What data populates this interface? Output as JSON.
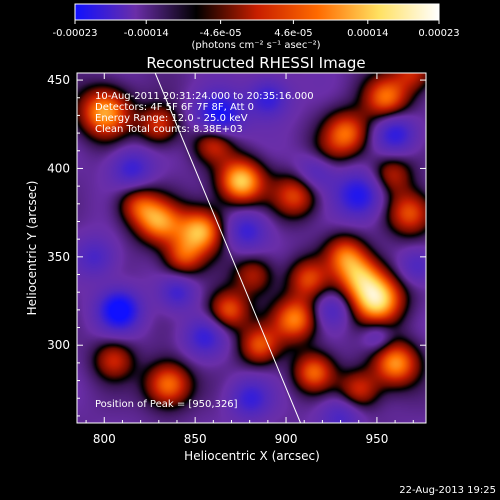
{
  "chart_data": {
    "type": "heatmap",
    "title": "Reconstructed RHESSI Image",
    "xlabel": "Heliocentric X (arcsec)",
    "ylabel": "Heliocentric Y (arcsec)",
    "xlim": [
      785,
      977
    ],
    "ylim": [
      256,
      454
    ],
    "x_ticks": [
      800,
      850,
      900,
      950
    ],
    "y_ticks": [
      300,
      350,
      400,
      450
    ],
    "colorbar": {
      "min": -0.00023,
      "max": 0.00023,
      "ticks": [
        {
          "value": -0.00023,
          "label": "-0.00023"
        },
        {
          "value": -0.00014,
          "label": "-0.00014"
        },
        {
          "value": -4.6e-05,
          "label": "-4.6e-05"
        },
        {
          "value": 4.6e-05,
          "label": "4.6e-05"
        },
        {
          "value": 0.00014,
          "label": "0.00014"
        },
        {
          "value": 0.00023,
          "label": "0.00023"
        }
      ],
      "unit_label": "(photons cm⁻² s⁻¹ asec⁻²)",
      "colors": [
        "#1010ff",
        "#6a2ea8",
        "#000000",
        "#c81e00",
        "#ff6a00",
        "#ffe060",
        "#ffffff"
      ]
    },
    "annotations": [
      "10-Aug-2011 20:31:24.000 to 20:35:16.000",
      "Detectors: 4F 5F 6F 7F 8F, Att 0",
      "Energy Range: 12.0 - 25.0 keV",
      "Clean     Total counts: 8.38E+03"
    ],
    "peak_label": "Position of Peak = [950,326]",
    "peak": {
      "x": 950,
      "y": 326
    },
    "limb_line": [
      [
        828,
        454
      ],
      [
        908,
        256
      ]
    ],
    "sources": [
      {
        "x": 950,
        "y": 326,
        "amp": 1.0,
        "sigma": 10
      },
      {
        "x": 940,
        "y": 340,
        "amp": 0.7,
        "sigma": 9
      },
      {
        "x": 932,
        "y": 352,
        "amp": 0.55,
        "sigma": 8
      },
      {
        "x": 968,
        "y": 375,
        "amp": 0.65,
        "sigma": 9
      },
      {
        "x": 958,
        "y": 397,
        "amp": 0.45,
        "sigma": 8
      },
      {
        "x": 960,
        "y": 290,
        "amp": 0.8,
        "sigma": 9
      },
      {
        "x": 940,
        "y": 275,
        "amp": 0.55,
        "sigma": 8
      },
      {
        "x": 915,
        "y": 285,
        "amp": 0.65,
        "sigma": 8
      },
      {
        "x": 905,
        "y": 315,
        "amp": 0.75,
        "sigma": 9
      },
      {
        "x": 912,
        "y": 338,
        "amp": 0.55,
        "sigma": 8
      },
      {
        "x": 905,
        "y": 385,
        "amp": 0.6,
        "sigma": 9
      },
      {
        "x": 933,
        "y": 420,
        "amp": 0.7,
        "sigma": 9
      },
      {
        "x": 955,
        "y": 440,
        "amp": 0.7,
        "sigma": 9
      },
      {
        "x": 970,
        "y": 455,
        "amp": 0.5,
        "sigma": 8
      },
      {
        "x": 875,
        "y": 393,
        "amp": 0.95,
        "sigma": 9
      },
      {
        "x": 860,
        "y": 415,
        "amp": 0.55,
        "sigma": 8
      },
      {
        "x": 853,
        "y": 365,
        "amp": 0.85,
        "sigma": 9
      },
      {
        "x": 843,
        "y": 350,
        "amp": 0.55,
        "sigma": 8
      },
      {
        "x": 830,
        "y": 370,
        "amp": 0.75,
        "sigma": 9
      },
      {
        "x": 818,
        "y": 380,
        "amp": 0.5,
        "sigma": 8
      },
      {
        "x": 800,
        "y": 432,
        "amp": 0.85,
        "sigma": 10
      },
      {
        "x": 830,
        "y": 425,
        "amp": 0.55,
        "sigma": 8
      },
      {
        "x": 868,
        "y": 320,
        "amp": 0.65,
        "sigma": 8
      },
      {
        "x": 885,
        "y": 300,
        "amp": 0.6,
        "sigma": 8
      },
      {
        "x": 835,
        "y": 278,
        "amp": 0.75,
        "sigma": 9
      },
      {
        "x": 805,
        "y": 292,
        "amp": 0.5,
        "sigma": 8
      },
      {
        "x": 882,
        "y": 340,
        "amp": 0.45,
        "sigma": 8
      },
      {
        "x": 920,
        "y": 405,
        "amp": 0.4,
        "sigma": 8
      },
      {
        "x": 808,
        "y": 320,
        "amp": -0.9,
        "sigma": 8
      },
      {
        "x": 863,
        "y": 430,
        "amp": -0.8,
        "sigma": 9
      },
      {
        "x": 940,
        "y": 385,
        "amp": -0.7,
        "sigma": 9
      },
      {
        "x": 917,
        "y": 400,
        "amp": -0.6,
        "sigma": 8
      },
      {
        "x": 878,
        "y": 365,
        "amp": -0.5,
        "sigma": 8
      },
      {
        "x": 855,
        "y": 305,
        "amp": -0.5,
        "sigma": 8
      },
      {
        "x": 880,
        "y": 270,
        "amp": -0.5,
        "sigma": 8
      },
      {
        "x": 925,
        "y": 320,
        "amp": -0.4,
        "sigma": 7
      },
      {
        "x": 960,
        "y": 420,
        "amp": -0.6,
        "sigma": 8
      },
      {
        "x": 815,
        "y": 400,
        "amp": -0.5,
        "sigma": 8
      },
      {
        "x": 890,
        "y": 440,
        "amp": -0.55,
        "sigma": 8
      },
      {
        "x": 840,
        "y": 330,
        "amp": -0.45,
        "sigma": 7
      },
      {
        "x": 972,
        "y": 345,
        "amp": -0.4,
        "sigma": 7
      },
      {
        "x": 795,
        "y": 350,
        "amp": -0.4,
        "sigma": 8
      },
      {
        "x": 950,
        "y": 305,
        "amp": -0.35,
        "sigma": 6
      },
      {
        "x": 930,
        "y": 260,
        "amp": -0.4,
        "sigma": 8
      }
    ]
  },
  "footer": {
    "date": "22-Aug-2013 19:25"
  }
}
